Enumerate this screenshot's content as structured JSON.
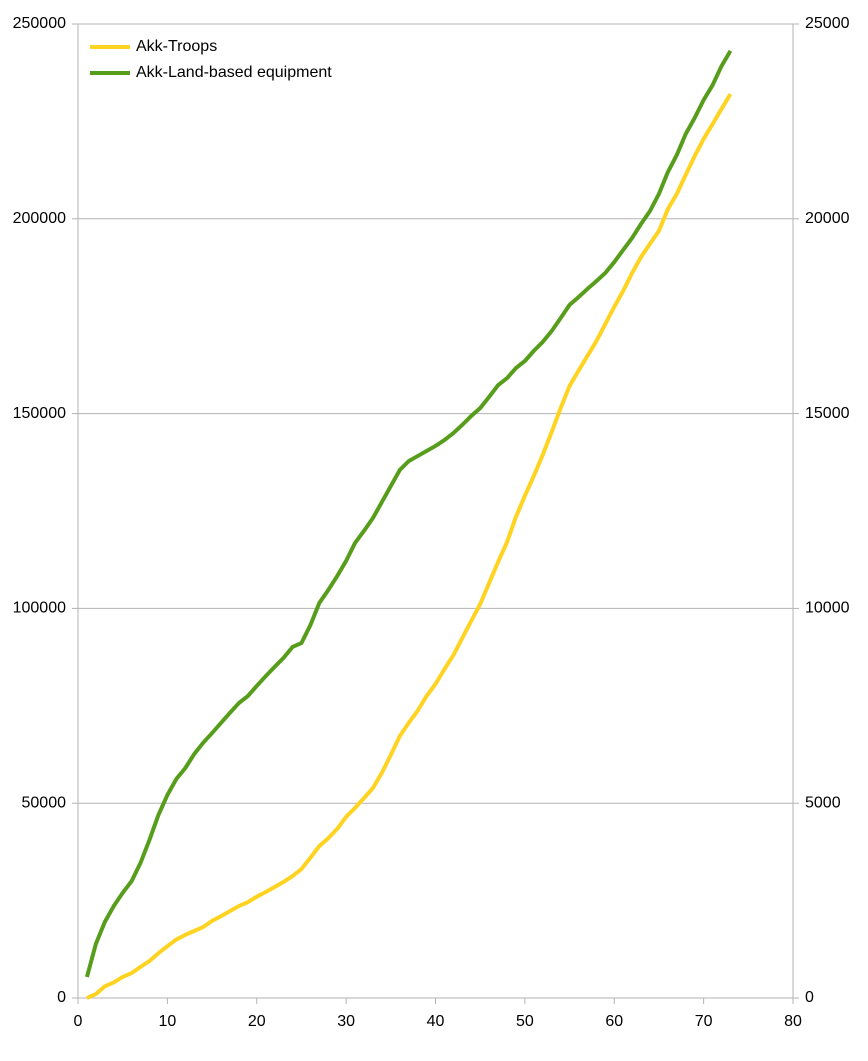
{
  "chart_data": {
    "type": "line",
    "x": [
      1,
      2,
      3,
      4,
      5,
      6,
      7,
      8,
      9,
      10,
      11,
      12,
      13,
      14,
      15,
      16,
      17,
      18,
      19,
      20,
      21,
      22,
      23,
      24,
      25,
      26,
      27,
      28,
      29,
      30,
      31,
      32,
      33,
      34,
      35,
      36,
      37,
      38,
      39,
      40,
      41,
      42,
      43,
      44,
      45,
      46,
      47,
      48,
      49,
      50,
      51,
      52,
      53,
      54,
      55,
      56,
      57,
      58,
      59,
      60,
      61,
      62,
      63,
      64,
      65,
      66,
      67,
      68,
      69,
      70,
      71,
      72,
      73
    ],
    "series": [
      {
        "name": "Akk-Troops",
        "color": "#ffd320",
        "axis": "y",
        "values": [
          0,
          1000,
          3000,
          4000,
          5400,
          6400,
          8000,
          9500,
          11500,
          13300,
          15000,
          16200,
          17200,
          18200,
          19800,
          21000,
          22300,
          23600,
          24600,
          26000,
          27200,
          28500,
          29800,
          31300,
          33100,
          36000,
          39000,
          41000,
          43400,
          46500,
          48800,
          51300,
          53900,
          57800,
          62400,
          67200,
          70600,
          73700,
          77500,
          80600,
          84400,
          88000,
          92400,
          96800,
          101100,
          106500,
          111900,
          117000,
          123500,
          128900,
          134000,
          139400,
          145300,
          151400,
          157100,
          161000,
          164800,
          168600,
          173000,
          177400,
          181500,
          186100,
          190200,
          193600,
          196900,
          202500,
          206400,
          211300,
          216100,
          220500,
          224300,
          228200,
          232000
        ]
      },
      {
        "name": "Akk-Land-based equipment",
        "color": "#579d1c",
        "axis": "y2",
        "values": [
          540,
          1390,
          1950,
          2360,
          2700,
          3000,
          3470,
          4060,
          4700,
          5210,
          5620,
          5900,
          6260,
          6550,
          6800,
          7060,
          7320,
          7570,
          7750,
          8010,
          8260,
          8500,
          8730,
          9010,
          9110,
          9570,
          10140,
          10470,
          10830,
          11220,
          11680,
          11990,
          12320,
          12730,
          13140,
          13550,
          13780,
          13910,
          14040,
          14170,
          14320,
          14500,
          14710,
          14940,
          15140,
          15430,
          15730,
          15910,
          16170,
          16350,
          16610,
          16840,
          17120,
          17450,
          17790,
          17990,
          18200,
          18400,
          18610,
          18890,
          19200,
          19510,
          19870,
          20200,
          20640,
          21200,
          21640,
          22180,
          22590,
          23050,
          23430,
          23920,
          24310
        ]
      }
    ],
    "xlim": [
      0,
      80
    ],
    "xticks": [
      0,
      10,
      20,
      30,
      40,
      50,
      60,
      70,
      80
    ],
    "ylim": [
      0,
      250000
    ],
    "yticks": [
      0,
      50000,
      100000,
      150000,
      200000,
      250000
    ],
    "y2lim": [
      0,
      25000
    ],
    "y2ticks": [
      0,
      5000,
      10000,
      15000,
      20000,
      25000
    ],
    "grid": true,
    "legend": "top-left"
  }
}
